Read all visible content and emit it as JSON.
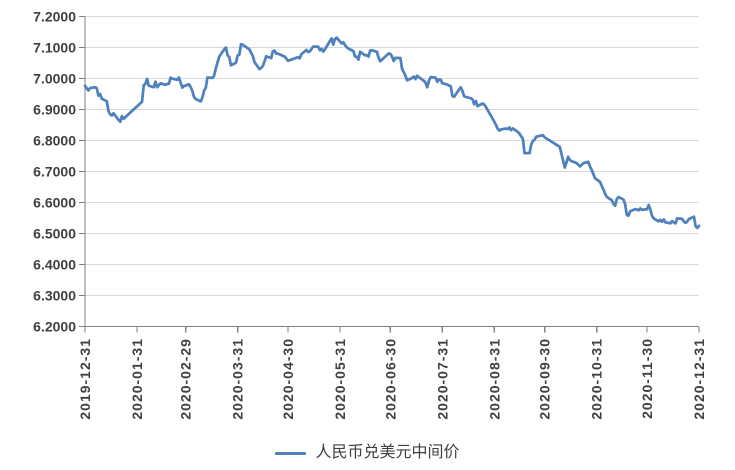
{
  "colors": {
    "series_line": "#4F81BD",
    "gridline": "#D9D9D9",
    "axis": "#808080",
    "tick_label": "#404040",
    "background": "#FFFFFF"
  },
  "legend": {
    "label": "人民币兑美元中间价"
  },
  "chart_data": {
    "type": "line",
    "title": "",
    "xlabel": "",
    "ylabel": "",
    "grid": "horizontal",
    "legend_position": "bottom",
    "ylim": [
      6.2,
      7.2
    ],
    "y_tick_step": 0.1,
    "y_ticks": [
      "7.2000",
      "7.1000",
      "7.0000",
      "6.9000",
      "6.8000",
      "6.7000",
      "6.6000",
      "6.5000",
      "6.4000",
      "6.3000",
      "6.2000"
    ],
    "x_ticks": [
      "2019-12-31",
      "2020-01-31",
      "2020-02-29",
      "2020-03-31",
      "2020-04-30",
      "2020-05-31",
      "2020-06-30",
      "2020-07-31",
      "2020-08-31",
      "2020-09-30",
      "2020-10-31",
      "2020-11-30",
      "2020-12-31"
    ],
    "series": [
      {
        "name": "人民币兑美元中间价",
        "color": "#4F81BD",
        "points": [
          [
            "2019-12-31",
            6.9762
          ],
          [
            "2020-01-02",
            6.9614
          ],
          [
            "2020-01-03",
            6.969
          ],
          [
            "2020-01-06",
            6.9718
          ],
          [
            "2020-01-07",
            6.969
          ],
          [
            "2020-01-08",
            6.945
          ],
          [
            "2020-01-09",
            6.9497
          ],
          [
            "2020-01-10",
            6.9351
          ],
          [
            "2020-01-13",
            6.9263
          ],
          [
            "2020-01-14",
            6.8954
          ],
          [
            "2020-01-15",
            6.8845
          ],
          [
            "2020-01-16",
            6.8807
          ],
          [
            "2020-01-17",
            6.8878
          ],
          [
            "2020-01-20",
            6.8664
          ],
          [
            "2020-01-21",
            6.8606
          ],
          [
            "2020-01-22",
            6.8784
          ],
          [
            "2020-01-23",
            6.8701
          ],
          [
            "2020-02-03",
            6.9249
          ],
          [
            "2020-02-04",
            6.9779
          ],
          [
            "2020-02-05",
            6.9823
          ],
          [
            "2020-02-06",
            6.9985
          ],
          [
            "2020-02-07",
            6.9768
          ],
          [
            "2020-02-10",
            6.9718
          ],
          [
            "2020-02-11",
            6.9897
          ],
          [
            "2020-02-12",
            6.9718
          ],
          [
            "2020-02-13",
            6.9785
          ],
          [
            "2020-02-14",
            6.9843
          ],
          [
            "2020-02-17",
            6.9795
          ],
          [
            "2020-02-18",
            6.9826
          ],
          [
            "2020-02-19",
            6.9825
          ],
          [
            "2020-02-20",
            7.0026
          ],
          [
            "2020-02-21",
            6.9995
          ],
          [
            "2020-02-24",
            6.9959
          ],
          [
            "2020-02-25",
            7.003
          ],
          [
            "2020-02-26",
            6.9868
          ],
          [
            "2020-02-27",
            6.9708
          ],
          [
            "2020-02-28",
            6.9756
          ],
          [
            "2020-03-02",
            6.9811
          ],
          [
            "2020-03-03",
            6.9722
          ],
          [
            "2020-03-04",
            6.9596
          ],
          [
            "2020-03-05",
            6.9403
          ],
          [
            "2020-03-06",
            6.9337
          ],
          [
            "2020-03-09",
            6.926
          ],
          [
            "2020-03-10",
            6.9389
          ],
          [
            "2020-03-11",
            6.9612
          ],
          [
            "2020-03-12",
            6.9704
          ],
          [
            "2020-03-13",
            7.0033
          ],
          [
            "2020-03-16",
            7.0018
          ],
          [
            "2020-03-17",
            7.0094
          ],
          [
            "2020-03-18",
            7.0328
          ],
          [
            "2020-03-19",
            7.0522
          ],
          [
            "2020-03-20",
            7.0703
          ],
          [
            "2020-03-23",
            7.094
          ],
          [
            "2020-03-24",
            7.0999
          ],
          [
            "2020-03-25",
            7.0742
          ],
          [
            "2020-03-26",
            7.0692
          ],
          [
            "2020-03-27",
            7.0427
          ],
          [
            "2020-03-30",
            7.0508
          ],
          [
            "2020-03-31",
            7.0746
          ],
          [
            "2020-04-01",
            7.0771
          ],
          [
            "2020-04-02",
            7.1104
          ],
          [
            "2020-04-03",
            7.1089
          ],
          [
            "2020-04-07",
            7.0939
          ],
          [
            "2020-04-08",
            7.0831
          ],
          [
            "2020-04-09",
            7.0729
          ],
          [
            "2020-04-10",
            7.0531
          ],
          [
            "2020-04-13",
            7.0303
          ],
          [
            "2020-04-14",
            7.0338
          ],
          [
            "2020-04-15",
            7.0402
          ],
          [
            "2020-04-16",
            7.0551
          ],
          [
            "2020-04-17",
            7.0718
          ],
          [
            "2020-04-20",
            7.0657
          ],
          [
            "2020-04-21",
            7.0882
          ],
          [
            "2020-04-22",
            7.0903
          ],
          [
            "2020-04-23",
            7.0801
          ],
          [
            "2020-04-24",
            7.0803
          ],
          [
            "2020-04-27",
            7.0729
          ],
          [
            "2020-04-28",
            7.071
          ],
          [
            "2020-04-29",
            7.0642
          ],
          [
            "2020-04-30",
            7.0571
          ],
          [
            "2020-05-06",
            7.069
          ],
          [
            "2020-05-07",
            7.0651
          ],
          [
            "2020-05-08",
            7.0788
          ],
          [
            "2020-05-11",
            7.0919
          ],
          [
            "2020-05-12",
            7.0854
          ],
          [
            "2020-05-13",
            7.0875
          ],
          [
            "2020-05-14",
            7.0948
          ],
          [
            "2020-05-15",
            7.103
          ],
          [
            "2020-05-18",
            7.103
          ],
          [
            "2020-05-19",
            7.0912
          ],
          [
            "2020-05-20",
            7.0956
          ],
          [
            "2020-05-21",
            7.0868
          ],
          [
            "2020-05-22",
            7.0939
          ],
          [
            "2020-05-25",
            7.1209
          ],
          [
            "2020-05-26",
            7.1293
          ],
          [
            "2020-05-27",
            7.1092
          ],
          [
            "2020-05-28",
            7.1277
          ],
          [
            "2020-05-29",
            7.1316
          ],
          [
            "2020-06-01",
            7.1129
          ],
          [
            "2020-06-02",
            7.1167
          ],
          [
            "2020-06-03",
            7.1074
          ],
          [
            "2020-06-04",
            7.1012
          ],
          [
            "2020-06-05",
            7.0965
          ],
          [
            "2020-06-08",
            7.0882
          ],
          [
            "2020-06-09",
            7.0711
          ],
          [
            "2020-06-10",
            7.0703
          ],
          [
            "2020-06-11",
            7.0608
          ],
          [
            "2020-06-12",
            7.0865
          ],
          [
            "2020-06-15",
            7.0746
          ],
          [
            "2020-06-16",
            7.0755
          ],
          [
            "2020-06-17",
            7.0706
          ],
          [
            "2020-06-18",
            7.0903
          ],
          [
            "2020-06-19",
            7.0913
          ],
          [
            "2020-06-22",
            7.0862
          ],
          [
            "2020-06-23",
            7.0671
          ],
          [
            "2020-06-24",
            7.0555
          ],
          [
            "2020-06-29",
            7.0808
          ],
          [
            "2020-06-30",
            7.0795
          ],
          [
            "2020-07-01",
            7.071
          ],
          [
            "2020-07-02",
            7.0566
          ],
          [
            "2020-07-03",
            7.0666
          ],
          [
            "2020-07-06",
            7.0663
          ],
          [
            "2020-07-07",
            7.031
          ],
          [
            "2020-07-08",
            7.0207
          ],
          [
            "2020-07-09",
            7.0085
          ],
          [
            "2020-07-10",
            6.9943
          ],
          [
            "2020-07-13",
            7.0017
          ],
          [
            "2020-07-14",
            7.0063
          ],
          [
            "2020-07-15",
            6.9982
          ],
          [
            "2020-07-16",
            7.0088
          ],
          [
            "2020-07-17",
            7.0043
          ],
          [
            "2020-07-20",
            6.9928
          ],
          [
            "2020-07-21",
            6.9862
          ],
          [
            "2020-07-22",
            6.9718
          ],
          [
            "2020-07-23",
            6.9921
          ],
          [
            "2020-07-24",
            7.0043
          ],
          [
            "2020-07-27",
            7.0029
          ],
          [
            "2020-07-28",
            6.9895
          ],
          [
            "2020-07-29",
            6.9969
          ],
          [
            "2020-07-30",
            6.9962
          ],
          [
            "2020-07-31",
            6.9848
          ],
          [
            "2020-08-03",
            6.9803
          ],
          [
            "2020-08-04",
            6.9771
          ],
          [
            "2020-08-05",
            6.9752
          ],
          [
            "2020-08-06",
            6.9438
          ],
          [
            "2020-08-07",
            6.9408
          ],
          [
            "2020-08-10",
            6.9649
          ],
          [
            "2020-08-11",
            6.9711
          ],
          [
            "2020-08-12",
            6.9597
          ],
          [
            "2020-08-13",
            6.9429
          ],
          [
            "2020-08-14",
            6.9405
          ],
          [
            "2020-08-17",
            6.9362
          ],
          [
            "2020-08-18",
            6.9325
          ],
          [
            "2020-08-19",
            6.9168
          ],
          [
            "2020-08-20",
            6.9274
          ],
          [
            "2020-08-21",
            6.9107
          ],
          [
            "2020-08-24",
            6.9194
          ],
          [
            "2020-08-25",
            6.9159
          ],
          [
            "2020-08-26",
            6.9079
          ],
          [
            "2020-08-27",
            6.8981
          ],
          [
            "2020-08-28",
            6.8891
          ],
          [
            "2020-08-31",
            6.8605
          ],
          [
            "2020-09-01",
            6.8498
          ],
          [
            "2020-09-02",
            6.8376
          ],
          [
            "2020-09-03",
            6.8319
          ],
          [
            "2020-09-04",
            6.8359
          ],
          [
            "2020-09-07",
            6.8386
          ],
          [
            "2020-09-08",
            6.8364
          ],
          [
            "2020-09-09",
            6.8423
          ],
          [
            "2020-09-10",
            6.8331
          ],
          [
            "2020-09-11",
            6.8389
          ],
          [
            "2020-09-14",
            6.8277
          ],
          [
            "2020-09-15",
            6.8222
          ],
          [
            "2020-09-16",
            6.8133
          ],
          [
            "2020-09-17",
            6.806
          ],
          [
            "2020-09-18",
            6.7591
          ],
          [
            "2020-09-21",
            6.7595
          ],
          [
            "2020-09-22",
            6.7872
          ],
          [
            "2020-09-23",
            6.7986
          ],
          [
            "2020-09-24",
            6.8028
          ],
          [
            "2020-09-25",
            6.8121
          ],
          [
            "2020-09-28",
            6.8161
          ],
          [
            "2020-09-29",
            6.8171
          ],
          [
            "2020-09-30",
            6.8101
          ],
          [
            "2020-10-09",
            6.7796
          ],
          [
            "2020-10-12",
            6.7126
          ],
          [
            "2020-10-13",
            6.7296
          ],
          [
            "2020-10-14",
            6.7473
          ],
          [
            "2020-10-15",
            6.7374
          ],
          [
            "2020-10-16",
            6.7332
          ],
          [
            "2020-10-19",
            6.7275
          ],
          [
            "2020-10-20",
            6.7218
          ],
          [
            "2020-10-21",
            6.7162
          ],
          [
            "2020-10-22",
            6.7213
          ],
          [
            "2020-10-23",
            6.7268
          ],
          [
            "2020-10-26",
            6.731
          ],
          [
            "2020-10-27",
            6.7163
          ],
          [
            "2020-10-28",
            6.7055
          ],
          [
            "2020-10-29",
            6.6921
          ],
          [
            "2020-10-30",
            6.6782
          ],
          [
            "2020-11-02",
            6.6667
          ],
          [
            "2020-11-03",
            6.6539
          ],
          [
            "2020-11-04",
            6.6419
          ],
          [
            "2020-11-05",
            6.629
          ],
          [
            "2020-11-06",
            6.6182
          ],
          [
            "2020-11-09",
            6.6075
          ],
          [
            "2020-11-10",
            6.5958
          ],
          [
            "2020-11-11",
            6.5897
          ],
          [
            "2020-11-12",
            6.6116
          ],
          [
            "2020-11-13",
            6.6177
          ],
          [
            "2020-11-16",
            6.6095
          ],
          [
            "2020-11-17",
            6.5934
          ],
          [
            "2020-11-18",
            6.5593
          ],
          [
            "2020-11-19",
            6.5575
          ],
          [
            "2020-11-20",
            6.5719
          ],
          [
            "2020-11-23",
            6.5787
          ],
          [
            "2020-11-24",
            6.5772
          ],
          [
            "2020-11-25",
            6.5749
          ],
          [
            "2020-11-26",
            6.581
          ],
          [
            "2020-11-27",
            6.5766
          ],
          [
            "2020-11-30",
            6.5782
          ],
          [
            "2020-12-01",
            6.5921
          ],
          [
            "2020-12-02",
            6.5771
          ],
          [
            "2020-12-03",
            6.5567
          ],
          [
            "2020-12-04",
            6.5484
          ],
          [
            "2020-12-07",
            6.5391
          ],
          [
            "2020-12-08",
            6.5437
          ],
          [
            "2020-12-09",
            6.538
          ],
          [
            "2020-12-10",
            6.5452
          ],
          [
            "2020-12-11",
            6.5359
          ],
          [
            "2020-12-14",
            6.533
          ],
          [
            "2020-12-15",
            6.5402
          ],
          [
            "2020-12-16",
            6.5355
          ],
          [
            "2020-12-17",
            6.5327
          ],
          [
            "2020-12-18",
            6.5489
          ],
          [
            "2020-12-21",
            6.5473
          ],
          [
            "2020-12-22",
            6.5387
          ],
          [
            "2020-12-23",
            6.5343
          ],
          [
            "2020-12-24",
            6.5382
          ],
          [
            "2020-12-25",
            6.5467
          ],
          [
            "2020-12-28",
            6.5541
          ],
          [
            "2020-12-29",
            6.5232
          ],
          [
            "2020-12-30",
            6.518
          ],
          [
            "2020-12-31",
            6.5249
          ]
        ]
      }
    ]
  }
}
